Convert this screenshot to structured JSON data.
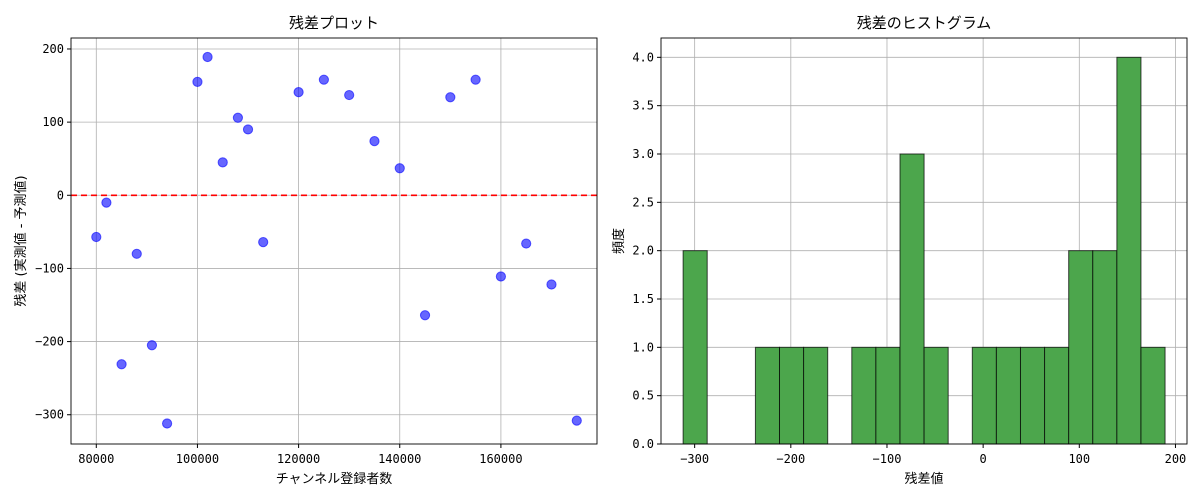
{
  "chart_data": [
    {
      "type": "scatter",
      "title": "残差プロット",
      "xlabel": "チャンネル登録者数",
      "ylabel": "残差 (実測値 - 予測値)",
      "xlim": [
        75000,
        179000
      ],
      "ylim": [
        -340,
        215
      ],
      "xticks": [
        80000,
        100000,
        120000,
        140000,
        160000
      ],
      "yticks": [
        -300,
        -200,
        -100,
        0,
        100,
        200
      ],
      "grid": true,
      "marker_color": "#0000ff",
      "reference_line": {
        "y": 0,
        "color": "#ff0000",
        "style": "dashed"
      },
      "points": [
        {
          "x": 80000,
          "y": -57
        },
        {
          "x": 82000,
          "y": -10
        },
        {
          "x": 85000,
          "y": -231
        },
        {
          "x": 88000,
          "y": -80
        },
        {
          "x": 91000,
          "y": -205
        },
        {
          "x": 94000,
          "y": -312
        },
        {
          "x": 100000,
          "y": 155
        },
        {
          "x": 102000,
          "y": 189
        },
        {
          "x": 105000,
          "y": 45
        },
        {
          "x": 108000,
          "y": 106
        },
        {
          "x": 110000,
          "y": 90
        },
        {
          "x": 113000,
          "y": -64
        },
        {
          "x": 120000,
          "y": 141
        },
        {
          "x": 125000,
          "y": 158
        },
        {
          "x": 130000,
          "y": 137
        },
        {
          "x": 135000,
          "y": 74
        },
        {
          "x": 140000,
          "y": 37
        },
        {
          "x": 145000,
          "y": -164
        },
        {
          "x": 150000,
          "y": 134
        },
        {
          "x": 155000,
          "y": 158
        },
        {
          "x": 160000,
          "y": -111
        },
        {
          "x": 165000,
          "y": -66
        },
        {
          "x": 170000,
          "y": -122
        },
        {
          "x": 175000,
          "y": -308
        }
      ]
    },
    {
      "type": "bar",
      "title": "残差のヒストグラム",
      "xlabel": "残差値",
      "ylabel": "頻度",
      "xlim": [
        -335,
        212
      ],
      "ylim": [
        0,
        4.2
      ],
      "xticks": [
        -300,
        -200,
        -100,
        0,
        100,
        200
      ],
      "yticks": [
        0.0,
        0.5,
        1.0,
        1.5,
        2.0,
        2.5,
        3.0,
        3.5,
        4.0
      ],
      "grid": true,
      "bar_color": "#4ca64c",
      "edge_color": "#000000",
      "bin_start": -312,
      "bin_width": 25.06,
      "counts": [
        2,
        0,
        0,
        1,
        1,
        1,
        0,
        1,
        1,
        3,
        1,
        0,
        1,
        1,
        1,
        1,
        2,
        2,
        4,
        1
      ]
    }
  ]
}
